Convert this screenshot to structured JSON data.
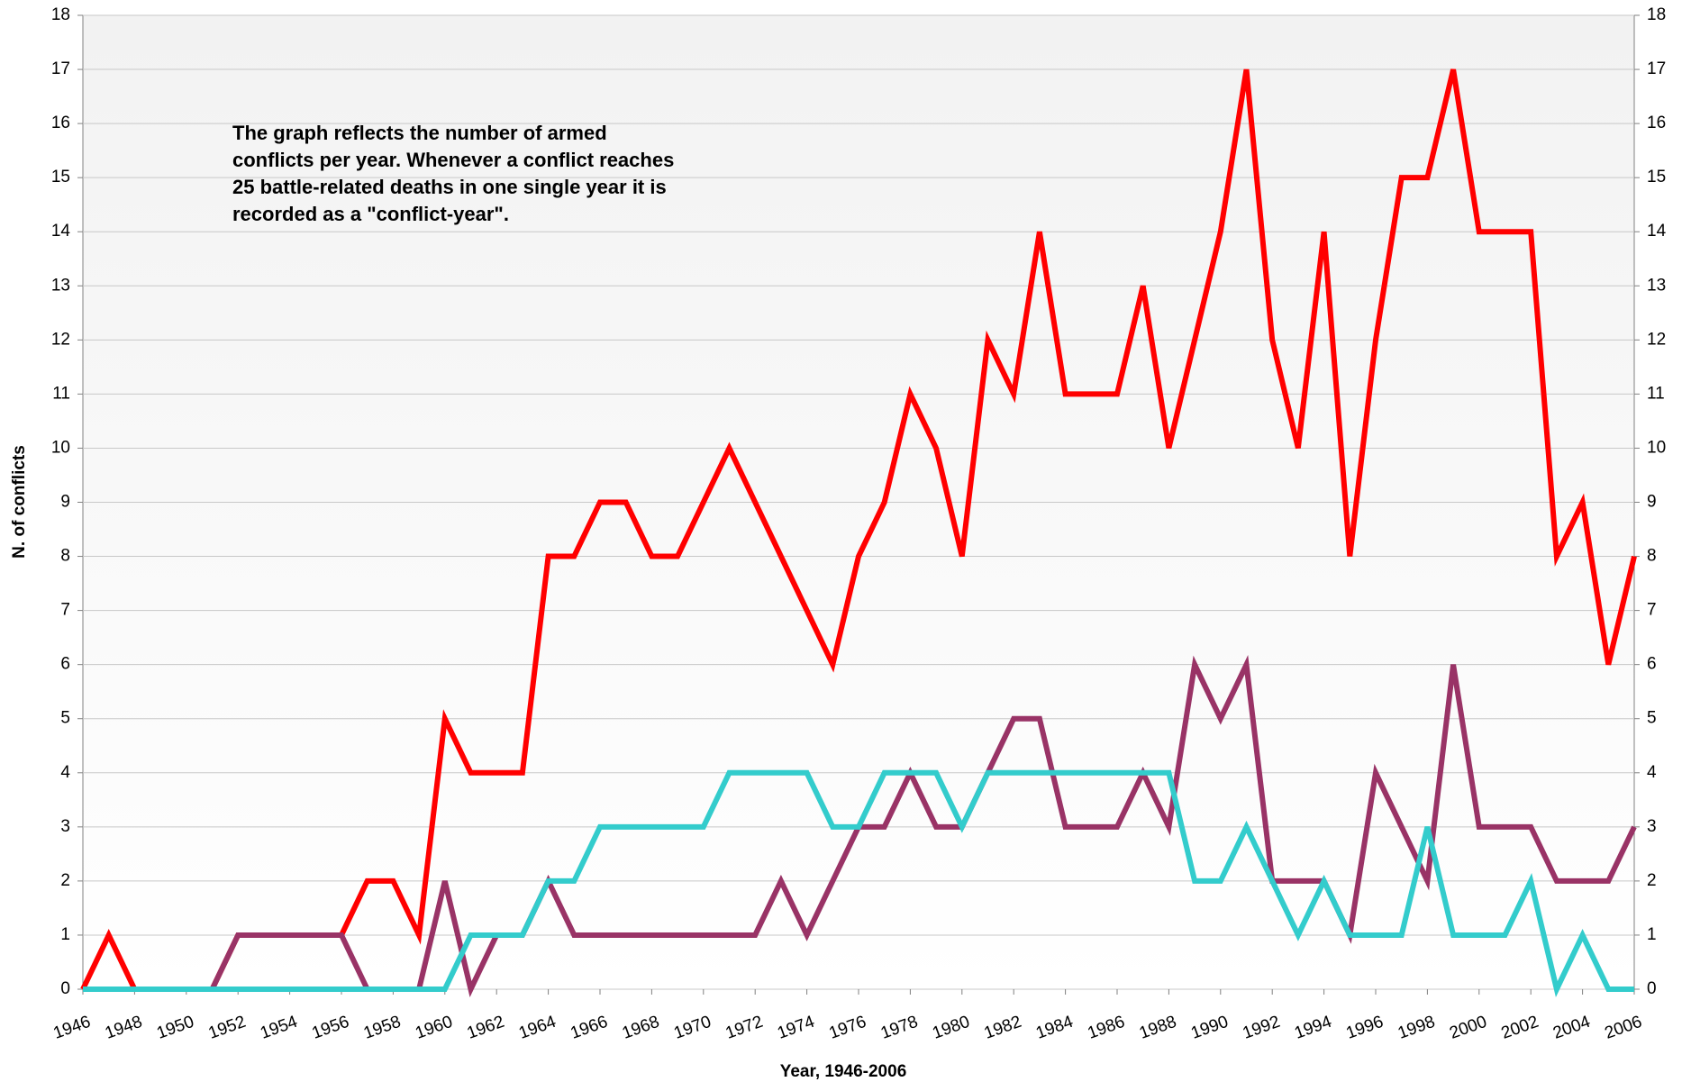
{
  "chart_data": {
    "type": "line",
    "xlabel": "Year, 1946-2006",
    "ylabel": "N. of conflicts",
    "annotation": [
      "The graph reflects the number of armed",
      "conflicts per year. Whenever a conflict reaches",
      "25 battle-related deaths in one single year it is",
      "recorded as a \"conflict-year\"."
    ],
    "x": [
      1946,
      1947,
      1948,
      1949,
      1950,
      1951,
      1952,
      1953,
      1954,
      1955,
      1956,
      1957,
      1958,
      1959,
      1960,
      1961,
      1962,
      1963,
      1964,
      1965,
      1966,
      1967,
      1968,
      1969,
      1970,
      1971,
      1972,
      1973,
      1974,
      1975,
      1976,
      1977,
      1978,
      1979,
      1980,
      1981,
      1982,
      1983,
      1984,
      1985,
      1986,
      1987,
      1988,
      1989,
      1990,
      1991,
      1992,
      1993,
      1994,
      1995,
      1996,
      1997,
      1998,
      1999,
      2000,
      2001,
      2002,
      2003,
      2004,
      2005,
      2006
    ],
    "series": [
      {
        "color": "#ff0000",
        "values": [
          0,
          1,
          0,
          0,
          0,
          0,
          1,
          1,
          1,
          1,
          1,
          2,
          2,
          1,
          5,
          4,
          4,
          4,
          8,
          8,
          9,
          9,
          8,
          8,
          9,
          10,
          9,
          8,
          7,
          6,
          8,
          9,
          11,
          10,
          8,
          12,
          11,
          14,
          11,
          11,
          11,
          13,
          10,
          12,
          14,
          17,
          12,
          10,
          14,
          8,
          12,
          15,
          15,
          17,
          14,
          14,
          14,
          8,
          9,
          6,
          8
        ]
      },
      {
        "color": "#993366",
        "values": [
          0,
          0,
          0,
          0,
          0,
          0,
          1,
          1,
          1,
          1,
          1,
          0,
          0,
          0,
          2,
          0,
          1,
          1,
          2,
          1,
          1,
          1,
          1,
          1,
          1,
          1,
          1,
          2,
          1,
          2,
          3,
          3,
          4,
          3,
          3,
          4,
          5,
          5,
          3,
          3,
          3,
          4,
          3,
          6,
          5,
          6,
          2,
          2,
          2,
          1,
          4,
          3,
          2,
          6,
          3,
          3,
          3,
          2,
          2,
          2,
          3
        ]
      },
      {
        "color": "#33cccc",
        "values": [
          0,
          0,
          0,
          0,
          0,
          0,
          0,
          0,
          0,
          0,
          0,
          0,
          0,
          0,
          0,
          1,
          1,
          1,
          2,
          2,
          3,
          3,
          3,
          3,
          3,
          4,
          4,
          4,
          4,
          3,
          3,
          4,
          4,
          4,
          3,
          4,
          4,
          4,
          4,
          4,
          4,
          4,
          4,
          2,
          2,
          3,
          2,
          1,
          2,
          1,
          1,
          1,
          3,
          1,
          1,
          1,
          2,
          0,
          1,
          0,
          0
        ]
      }
    ],
    "xlim": [
      1946,
      2006
    ],
    "xticks": [
      1946,
      1948,
      1950,
      1952,
      1954,
      1956,
      1958,
      1960,
      1962,
      1964,
      1966,
      1968,
      1970,
      1972,
      1974,
      1976,
      1978,
      1980,
      1982,
      1984,
      1986,
      1988,
      1990,
      1992,
      1994,
      1996,
      1998,
      2000,
      2002,
      2004,
      2006
    ],
    "ylim": [
      0,
      18
    ],
    "yticks": [
      0,
      1,
      2,
      3,
      4,
      5,
      6,
      7,
      8,
      9,
      10,
      11,
      12,
      13,
      14,
      15,
      16,
      17,
      18
    ],
    "y2lim": [
      0,
      18
    ],
    "y2ticks": [
      0,
      1,
      2,
      3,
      4,
      5,
      6,
      7,
      8,
      9,
      10,
      11,
      12,
      13,
      14,
      15,
      16,
      17,
      18
    ],
    "grid": true
  }
}
